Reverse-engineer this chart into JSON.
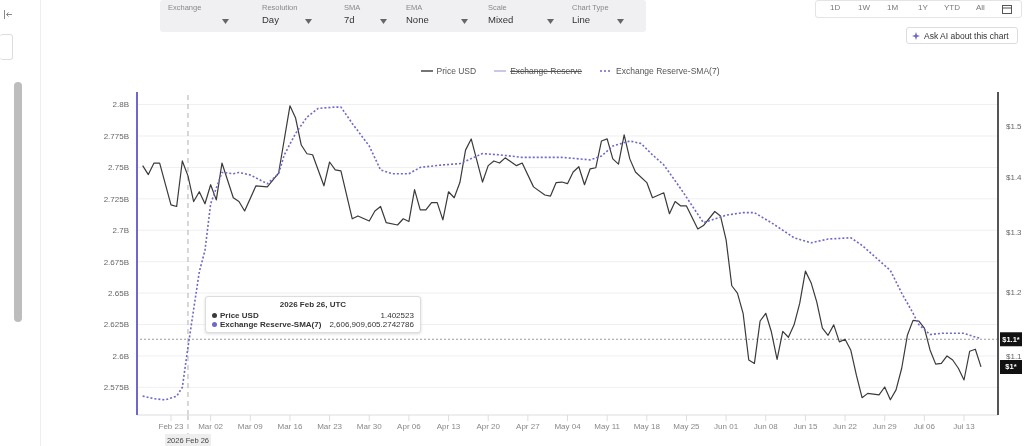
{
  "chart_data": {
    "type": "line",
    "xlim": [
      "2026-02-17",
      "2026-07-19"
    ],
    "xticks": [
      {
        "value": "2026-02-23",
        "label": "Feb 23"
      },
      {
        "value": "2026-03-02",
        "label": "Mar 02"
      },
      {
        "value": "2026-03-09",
        "label": "Mar 09"
      },
      {
        "value": "2026-03-16",
        "label": "Mar 16"
      },
      {
        "value": "2026-03-23",
        "label": "Mar 23"
      },
      {
        "value": "2026-03-30",
        "label": "Mar 30"
      },
      {
        "value": "2026-04-06",
        "label": "Apr 06"
      },
      {
        "value": "2026-04-13",
        "label": "Apr 13"
      },
      {
        "value": "2026-04-20",
        "label": "Apr 20"
      },
      {
        "value": "2026-04-27",
        "label": "Apr 27"
      },
      {
        "value": "2026-05-04",
        "label": "May 04"
      },
      {
        "value": "2026-05-11",
        "label": "May 11"
      },
      {
        "value": "2026-05-18",
        "label": "May 18"
      },
      {
        "value": "2026-05-25",
        "label": "May 25"
      },
      {
        "value": "2026-06-01",
        "label": "Jun 01"
      },
      {
        "value": "2026-06-08",
        "label": "Jun 08"
      },
      {
        "value": "2026-06-15",
        "label": "Jun 15"
      },
      {
        "value": "2026-06-22",
        "label": "Jun 22"
      },
      {
        "value": "2026-06-29",
        "label": "Jun 29"
      },
      {
        "value": "2026-07-06",
        "label": "Jul 06"
      },
      {
        "value": "2026-07-13",
        "label": "Jul 13"
      }
    ],
    "ylim": [
      2.553,
      2.81
    ],
    "yticks": [
      {
        "value": 2.575,
        "label": "2.575B"
      },
      {
        "value": 2.6,
        "label": "2.6B"
      },
      {
        "value": 2.625,
        "label": "2.625B"
      },
      {
        "value": 2.65,
        "label": "2.65B"
      },
      {
        "value": 2.675,
        "label": "2.675B"
      },
      {
        "value": 2.7,
        "label": "2.7B"
      },
      {
        "value": 2.725,
        "label": "2.725B"
      },
      {
        "value": 2.75,
        "label": "2.75B"
      },
      {
        "value": 2.775,
        "label": "2.775B"
      },
      {
        "value": 2.8,
        "label": "2.8B"
      }
    ],
    "y2lim": [
      1.017,
      1.57
    ],
    "y2ticks": [
      {
        "value": 1.1,
        "label": "$1.1"
      },
      {
        "value": 1.2,
        "label": "$1.2"
      },
      {
        "value": 1.3,
        "label": "$1.3"
      },
      {
        "value": 1.4,
        "label": "$1.4"
      },
      {
        "value": 1.5,
        "label": "$1.5"
      }
    ],
    "log": "y2",
    "grid": "y",
    "legend": "top",
    "marker": "none",
    "series": [
      {
        "name": "Price USD",
        "color": "#3a3a3a",
        "axis": "y2",
        "line_style": "solid",
        "x": [
          "2026-02-18",
          "2026-02-19",
          "2026-02-20",
          "2026-02-21",
          "2026-02-23",
          "2026-02-24",
          "2026-02-25",
          "2026-02-26",
          "2026-02-27",
          "2026-02-28",
          "2026-03-01",
          "2026-03-02",
          "2026-03-03",
          "2026-03-04",
          "2026-03-06",
          "2026-03-07",
          "2026-03-08",
          "2026-03-10",
          "2026-03-12",
          "2026-03-14",
          "2026-03-16",
          "2026-03-17",
          "2026-03-18",
          "2026-03-19",
          "2026-03-20",
          "2026-03-22",
          "2026-03-23",
          "2026-03-24",
          "2026-03-25",
          "2026-03-27",
          "2026-03-28",
          "2026-03-30",
          "2026-03-31",
          "2026-04-01",
          "2026-04-02",
          "2026-04-04",
          "2026-04-05",
          "2026-04-06",
          "2026-04-07",
          "2026-04-08",
          "2026-04-09",
          "2026-04-10",
          "2026-04-11",
          "2026-04-12",
          "2026-04-13",
          "2026-04-14",
          "2026-04-15",
          "2026-04-16",
          "2026-04-17",
          "2026-04-19",
          "2026-04-20",
          "2026-04-21",
          "2026-04-22",
          "2026-04-23",
          "2026-04-25",
          "2026-04-26",
          "2026-04-28",
          "2026-04-30",
          "2026-05-01",
          "2026-05-02",
          "2026-05-03",
          "2026-05-04",
          "2026-05-05",
          "2026-05-06",
          "2026-05-07",
          "2026-05-08",
          "2026-05-09",
          "2026-05-10",
          "2026-05-11",
          "2026-05-12",
          "2026-05-13",
          "2026-05-14",
          "2026-05-15",
          "2026-05-16",
          "2026-05-18",
          "2026-05-19",
          "2026-05-21",
          "2026-05-22",
          "2026-05-23",
          "2026-05-24",
          "2026-05-25",
          "2026-05-27",
          "2026-05-28",
          "2026-05-30",
          "2026-05-31",
          "2026-06-01",
          "2026-06-02",
          "2026-06-03",
          "2026-06-04",
          "2026-06-05",
          "2026-06-06",
          "2026-06-07",
          "2026-06-08",
          "2026-06-09",
          "2026-06-10",
          "2026-06-11",
          "2026-06-12",
          "2026-06-13",
          "2026-06-14",
          "2026-06-15",
          "2026-06-16",
          "2026-06-17",
          "2026-06-18",
          "2026-06-19",
          "2026-06-20",
          "2026-06-21",
          "2026-06-22",
          "2026-06-23",
          "2026-06-24",
          "2026-06-25",
          "2026-06-26",
          "2026-06-28",
          "2026-06-29",
          "2026-06-30",
          "2026-07-01",
          "2026-07-02",
          "2026-07-03",
          "2026-07-04",
          "2026-07-05",
          "2026-07-06",
          "2026-07-07",
          "2026-07-08",
          "2026-07-09",
          "2026-07-10",
          "2026-07-11",
          "2026-07-12",
          "2026-07-13",
          "2026-07-14",
          "2026-07-15",
          "2026-07-16"
        ],
        "values": [
          1.422,
          1.405,
          1.427,
          1.427,
          1.349,
          1.346,
          1.431,
          1.402523,
          1.355,
          1.373,
          1.351,
          1.386,
          1.358,
          1.427,
          1.362,
          1.355,
          1.338,
          1.384,
          1.382,
          1.408,
          1.541,
          1.516,
          1.462,
          1.445,
          1.443,
          1.384,
          1.429,
          1.414,
          1.412,
          1.324,
          1.329,
          1.32,
          1.338,
          1.346,
          1.317,
          1.313,
          1.324,
          1.319,
          1.377,
          1.34,
          1.34,
          1.353,
          1.353,
          1.322,
          1.373,
          1.362,
          1.39,
          1.452,
          1.474,
          1.391,
          1.422,
          1.431,
          1.427,
          1.437,
          1.422,
          1.427,
          1.382,
          1.367,
          1.365,
          1.39,
          1.391,
          1.388,
          1.41,
          1.42,
          1.386,
          1.416,
          1.418,
          1.47,
          1.474,
          1.435,
          1.425,
          1.482,
          1.435,
          1.41,
          1.39,
          1.362,
          1.371,
          1.333,
          1.355,
          1.347,
          1.347,
          1.306,
          1.312,
          1.337,
          1.329,
          1.287,
          1.21,
          1.198,
          1.166,
          1.095,
          1.09,
          1.154,
          1.166,
          1.137,
          1.096,
          1.138,
          1.129,
          1.148,
          1.182,
          1.234,
          1.215,
          1.184,
          1.143,
          1.132,
          1.148,
          1.122,
          1.126,
          1.11,
          1.073,
          1.041,
          1.047,
          1.045,
          1.056,
          1.038,
          1.052,
          1.083,
          1.132,
          1.155,
          1.154,
          1.143,
          1.11,
          1.089,
          1.09,
          1.101,
          1.095,
          1.083,
          1.066,
          1.108,
          1.111,
          1.085
        ]
      },
      {
        "name": "Exchange Reserve",
        "color": "#b4b0dc",
        "line_style": "solid"
      },
      {
        "name": "Exchange Reserve-SMA(7)",
        "color": "#6f67c9",
        "axis": "y",
        "line_style": "dotted",
        "x": [
          "2026-02-18",
          "2026-02-20",
          "2026-02-22",
          "2026-02-24",
          "2026-02-25",
          "2026-02-26",
          "2026-02-28",
          "2026-03-01",
          "2026-03-02",
          "2026-03-04",
          "2026-03-06",
          "2026-03-07",
          "2026-03-09",
          "2026-03-12",
          "2026-03-14",
          "2026-03-15",
          "2026-03-17",
          "2026-03-19",
          "2026-03-21",
          "2026-03-24",
          "2026-03-25",
          "2026-03-27",
          "2026-03-30",
          "2026-04-01",
          "2026-04-03",
          "2026-04-06",
          "2026-04-08",
          "2026-04-12",
          "2026-04-15",
          "2026-04-19",
          "2026-04-22",
          "2026-04-26",
          "2026-05-03",
          "2026-05-08",
          "2026-05-10",
          "2026-05-12",
          "2026-05-15",
          "2026-05-17",
          "2026-05-19",
          "2026-05-21",
          "2026-05-24",
          "2026-05-28",
          "2026-06-01",
          "2026-06-04",
          "2026-06-06",
          "2026-06-09",
          "2026-06-13",
          "2026-06-16",
          "2026-06-19",
          "2026-06-23",
          "2026-06-25",
          "2026-06-28",
          "2026-06-30",
          "2026-07-02",
          "2026-07-04",
          "2026-07-05",
          "2026-07-07",
          "2026-07-09",
          "2026-07-13",
          "2026-07-15",
          "2026-07-16"
        ],
        "values": [
          2.568,
          2.566,
          2.565,
          2.568,
          2.575,
          2.607,
          2.667,
          2.684,
          2.721,
          2.746,
          2.745,
          2.746,
          2.744,
          2.737,
          2.745,
          2.76,
          2.777,
          2.79,
          2.797,
          2.798,
          2.798,
          2.785,
          2.767,
          2.748,
          2.745,
          2.745,
          2.75,
          2.752,
          2.753,
          2.761,
          2.76,
          2.758,
          2.758,
          2.756,
          2.759,
          2.767,
          2.771,
          2.769,
          2.76,
          2.752,
          2.733,
          2.706,
          2.712,
          2.714,
          2.714,
          2.706,
          2.694,
          2.69,
          2.693,
          2.694,
          2.688,
          2.676,
          2.668,
          2.65,
          2.634,
          2.625,
          2.617,
          2.618,
          2.618,
          2.615,
          2.614
        ]
      }
    ],
    "ref_lines": [
      {
        "axis": "x",
        "value": "2026-02-26",
        "label": "2026 Feb 26",
        "color": "#b0b0b0",
        "line_style": "dashed"
      },
      {
        "axis": "y2",
        "value": 1.126,
        "label": "$1.1*",
        "color": "#9a9a9a",
        "line_style": "dotted"
      }
    ],
    "annotations": [
      "Exchange",
      "Resolution",
      "Day",
      "SMA",
      "7d",
      "EMA",
      "None",
      "Scale",
      "Mixed",
      "Chart Type",
      "Line",
      "1D",
      "1W",
      "1M",
      "1Y",
      "YTD",
      "All",
      "Ask AI about this chart",
      "2026 Feb 26, UTC",
      "Price USD",
      "1.402523",
      "Exchange Reserve-SMA(7)",
      "2,606,909,605.2742786",
      "$1*"
    ]
  }
}
